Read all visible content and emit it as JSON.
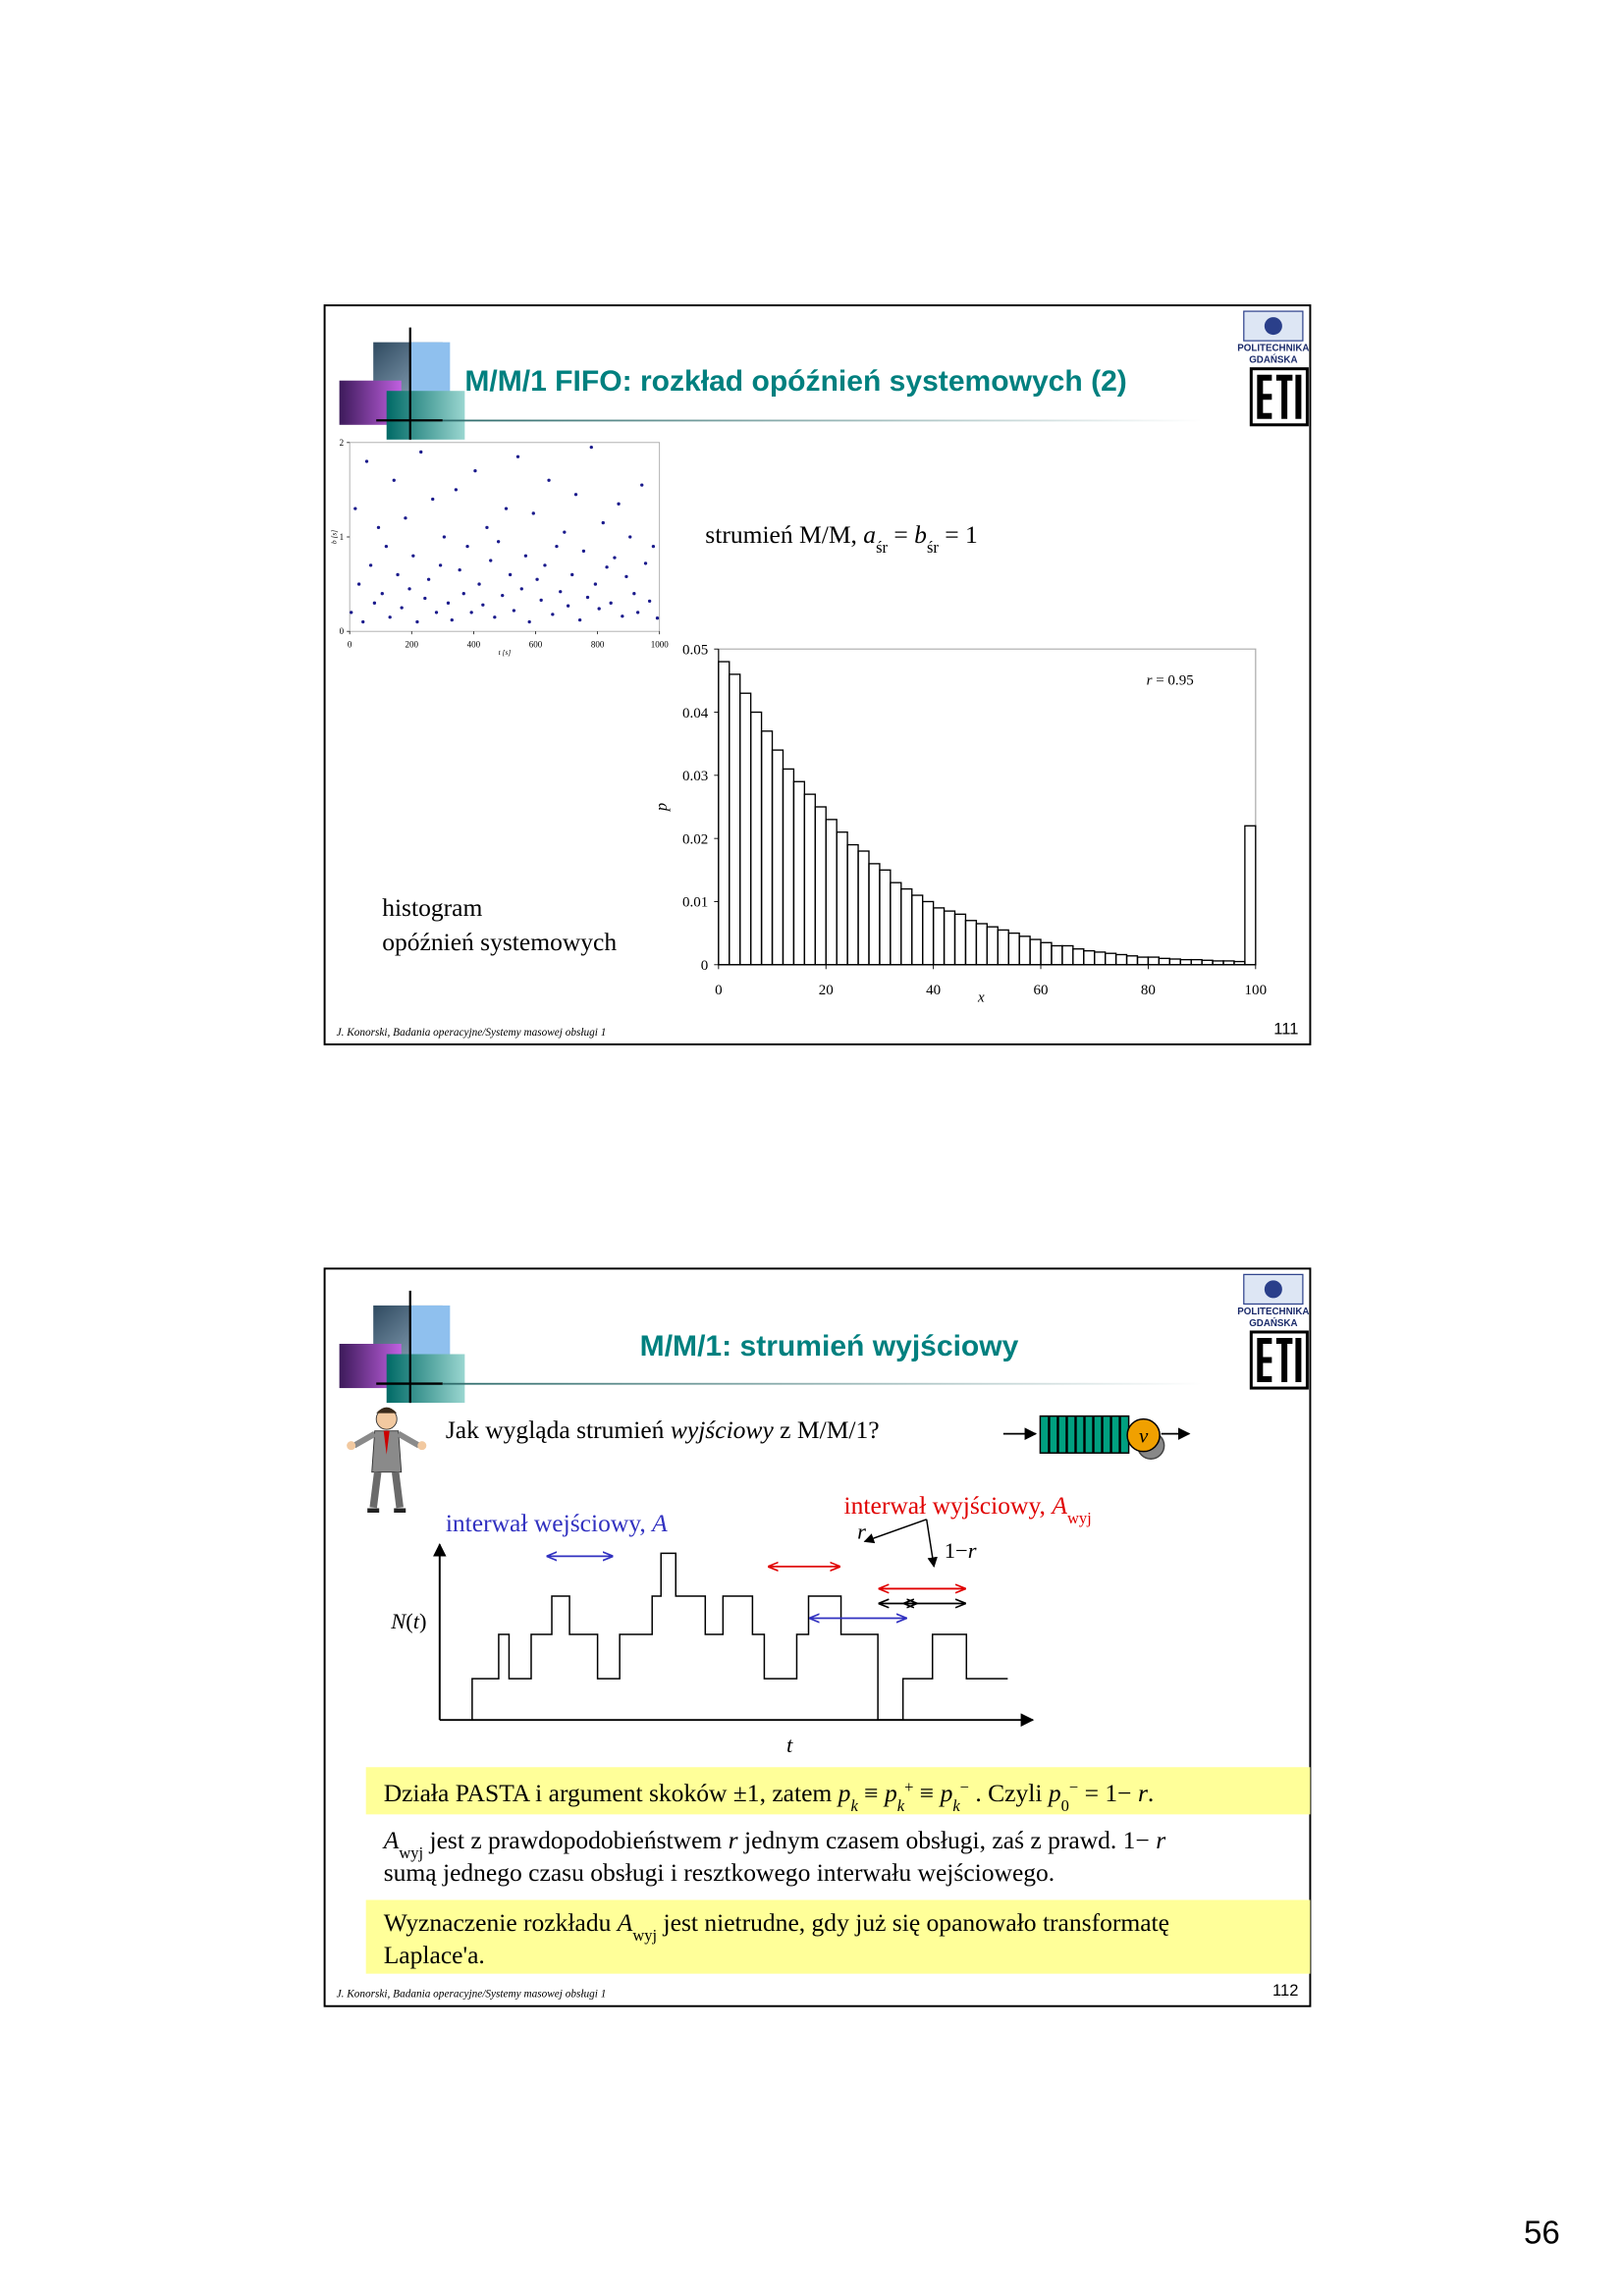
{
  "page_number": "56",
  "slides": [
    {
      "title": "M/M/1 FIFO: rozkład opóźnień systemowych (2)",
      "logo": [
        "POLITECHNIKA",
        "GDAŃSKA"
      ],
      "stream_label": [
        "strumień M/M, ",
        "a",
        "śr",
        " = ",
        "b",
        "śr",
        " = 1"
      ],
      "caption": [
        "histogram",
        "opóźnień systemowych"
      ],
      "footer": "J. Konorski, Badania operacyjne/Systemy masowej obsługi 1",
      "number": "111"
    },
    {
      "title": "M/M/1: strumień wyjściowy",
      "logo": [
        "POLITECHNIKA",
        "GDAŃSKA"
      ],
      "question": [
        "Jak wygląda strumień ",
        "wyjściowy",
        " z M/M/1?"
      ],
      "server": "v",
      "out_label": [
        "interwał wyjściowy, ",
        "A",
        "wyj"
      ],
      "in_label": [
        "interwał wejściowy, ",
        "A"
      ],
      "branch_r": "r",
      "branch_1r": [
        "1−",
        "r"
      ],
      "y_axis": [
        "N",
        "(",
        "t",
        ")"
      ],
      "x_axis": "t",
      "pasta": [
        "Działa PASTA i argument skoków ±1, zatem ",
        "p",
        "k",
        " ≡ ",
        "p",
        "k",
        "+",
        " ≡ ",
        "p",
        "k",
        "−",
        " . Czyli ",
        "p",
        "0",
        "−",
        " = 1− ",
        "r",
        "."
      ],
      "awyj_line1": [
        "A",
        "wyj",
        " jest z prawdopodobieństwem ",
        "r",
        " jednym czasem obsługi, zaś z  prawd. 1− ",
        "r"
      ],
      "awyj_line2": "sumą jednego czasu obsługi i resztkowego interwału wejściowego.",
      "final_line1": [
        "Wyznaczenie rozkładu ",
        "A",
        "wyj",
        " jest nietrudne, gdy już się opanowało transformatę"
      ],
      "final_line2": "Laplace'a.",
      "footer": "J. Konorski, Badania operacyjne/Systemy masowej obsługi 1",
      "number": "112"
    }
  ],
  "chart_data": [
    {
      "type": "scatter",
      "x_label": "t [s]",
      "y_label": "b [s]",
      "color": "#1a1a8c",
      "x": [
        5,
        18,
        30,
        43,
        55,
        68,
        80,
        93,
        105,
        118,
        130,
        143,
        155,
        168,
        180,
        193,
        205,
        218,
        230,
        243,
        255,
        268,
        280,
        293,
        305,
        318,
        330,
        343,
        355,
        368,
        380,
        393,
        405,
        418,
        430,
        443,
        455,
        468,
        480,
        493,
        505,
        518,
        530,
        543,
        555,
        568,
        580,
        593,
        605,
        618,
        630,
        643,
        655,
        668,
        680,
        693,
        705,
        718,
        730,
        743,
        755,
        768,
        780,
        793,
        805,
        818,
        830,
        843,
        855,
        868,
        880,
        893,
        905,
        918,
        930,
        943,
        955,
        968,
        980,
        993
      ],
      "values": [
        0.2,
        1.3,
        0.5,
        0.1,
        1.8,
        0.7,
        0.3,
        1.1,
        0.4,
        0.9,
        0.15,
        1.6,
        0.6,
        0.25,
        1.2,
        0.45,
        0.8,
        0.1,
        1.9,
        0.35,
        0.55,
        1.4,
        0.2,
        0.7,
        1.0,
        0.3,
        0.12,
        1.5,
        0.65,
        0.4,
        0.9,
        0.2,
        1.7,
        0.5,
        0.28,
        1.1,
        0.75,
        0.15,
        0.95,
        0.38,
        1.3,
        0.6,
        0.22,
        1.85,
        0.45,
        0.8,
        0.1,
        1.25,
        0.55,
        0.33,
        0.7,
        1.6,
        0.18,
        0.9,
        0.42,
        1.05,
        0.27,
        0.6,
        1.45,
        0.12,
        0.85,
        0.36,
        1.95,
        0.5,
        0.24,
        1.15,
        0.68,
        0.3,
        0.78,
        1.35,
        0.16,
        0.58,
        1.0,
        0.4,
        0.2,
        1.55,
        0.72,
        0.32,
        0.9,
        0.14
      ],
      "xlim": [
        0,
        1000
      ],
      "ylim": [
        0,
        2
      ],
      "xticks": [
        0,
        200,
        400,
        600,
        800,
        1000
      ],
      "yticks": [
        0,
        1,
        2
      ]
    },
    {
      "type": "histogram",
      "x_label": "x",
      "y_label": "p",
      "annotation": [
        "r",
        " = 0.95"
      ],
      "color": "#000000",
      "bins": [
        0,
        2,
        4,
        6,
        8,
        10,
        12,
        14,
        16,
        18,
        20,
        22,
        24,
        26,
        28,
        30,
        32,
        34,
        36,
        38,
        40,
        42,
        44,
        46,
        48,
        50,
        52,
        54,
        56,
        58,
        60,
        62,
        64,
        66,
        68,
        70,
        72,
        74,
        76,
        78,
        80,
        82,
        84,
        86,
        88,
        90,
        92,
        94,
        96,
        98,
        100
      ],
      "values": [
        0.048,
        0.046,
        0.043,
        0.04,
        0.037,
        0.034,
        0.031,
        0.029,
        0.027,
        0.025,
        0.023,
        0.021,
        0.019,
        0.018,
        0.016,
        0.015,
        0.013,
        0.012,
        0.011,
        0.01,
        0.009,
        0.0085,
        0.008,
        0.007,
        0.0065,
        0.006,
        0.0055,
        0.005,
        0.0045,
        0.004,
        0.0035,
        0.003,
        0.003,
        0.0025,
        0.0022,
        0.002,
        0.0018,
        0.0016,
        0.0014,
        0.0012,
        0.0012,
        0.001,
        0.0009,
        0.0008,
        0.0008,
        0.0007,
        0.0006,
        0.0006,
        0.0005,
        0.022
      ],
      "xlim": [
        0,
        100
      ],
      "ylim": [
        0,
        0.05
      ],
      "xticks": [
        0,
        20,
        40,
        60,
        80,
        100
      ],
      "yticks": [
        0,
        0.01,
        0.02,
        0.03,
        0.04,
        0.05
      ]
    }
  ]
}
